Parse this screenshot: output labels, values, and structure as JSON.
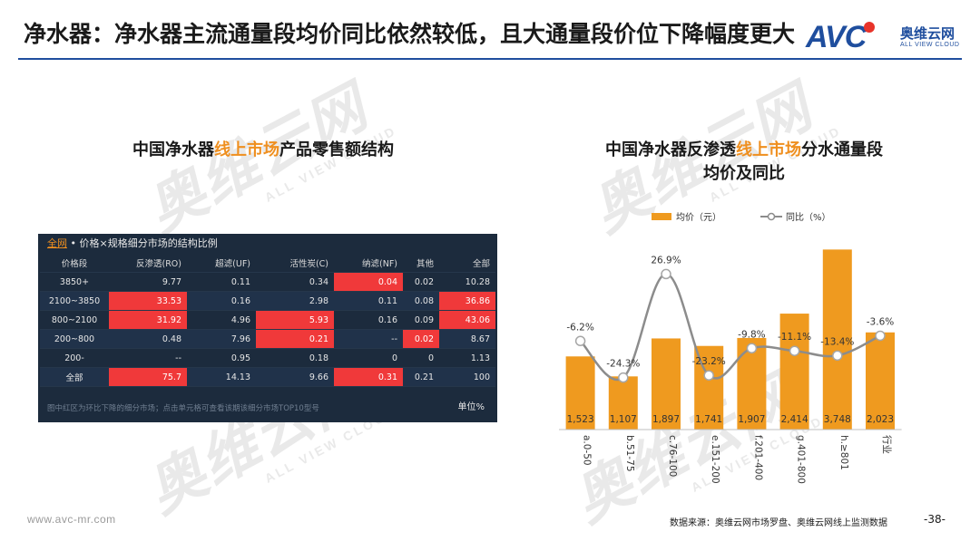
{
  "page": {
    "title": "净水器：净水器主流通量段均价同比依然较低，且大通量段价位下降幅度更大",
    "logo_mark": "AVC",
    "logo_cn": "奥维云网",
    "logo_en": "ALL VIEW CLOUD",
    "watermark_cn": "奥维云网",
    "watermark_en": "ALL VIEW CLOUD",
    "website": "www.avc-mr.com",
    "source": "数据来源：奥维云网市场罗盘、奥维云网线上监测数据",
    "page_number": "-38-"
  },
  "left_section": {
    "title_pre": "中国净水器",
    "title_hl": "线上市场",
    "title_post": "产品零售额结构"
  },
  "right_section": {
    "title_line1_pre": "中国净水器反渗透",
    "title_line1_hl": "线上市场",
    "title_line1_post": "分水通量段",
    "title_line2": "均价及同比"
  },
  "table": {
    "region": "全网",
    "caption": " • 价格×规格细分市场的结构比例",
    "headers": [
      "价格段",
      "反渗透(RO)",
      "超滤(UF)",
      "活性炭(C)",
      "纳滤(NF)",
      "其他",
      "全部"
    ],
    "rows": [
      {
        "cells": [
          "3850+",
          "9.77",
          "0.11",
          "0.34",
          "0.04",
          "0.02",
          "10.28"
        ],
        "red": [
          4
        ]
      },
      {
        "cells": [
          "2100~3850",
          "33.53",
          "0.16",
          "2.98",
          "0.11",
          "0.08",
          "36.86"
        ],
        "red": [
          1,
          6
        ]
      },
      {
        "cells": [
          "800~2100",
          "31.92",
          "4.96",
          "5.93",
          "0.16",
          "0.09",
          "43.06"
        ],
        "red": [
          1,
          3,
          6
        ]
      },
      {
        "cells": [
          "200~800",
          "0.48",
          "7.96",
          "0.21",
          "--",
          "0.02",
          "8.67"
        ],
        "red": [
          3,
          5
        ]
      },
      {
        "cells": [
          "200-",
          "--",
          "0.95",
          "0.18",
          "0",
          "0",
          "1.13"
        ],
        "red": []
      },
      {
        "cells": [
          "全部",
          "75.7",
          "14.13",
          "9.66",
          "0.31",
          "0.21",
          "100"
        ],
        "red": [
          1,
          4
        ]
      }
    ],
    "footnote": "图中红区为环比下降的细分市场；点击单元格可查看该期该细分市场TOP10型号",
    "unit": "单位%"
  },
  "colors": {
    "bar": "#ef9a1f",
    "line": "#8c8c8c",
    "accent": "#ef8f1f",
    "table_bg": "#1c2b3d",
    "table_red": "#f0393a",
    "title_rule": "#1f4e9e"
  },
  "chart_data": {
    "type": "bar",
    "categories": [
      "a.0-50",
      "b.51-75",
      "c.76-100",
      "e.151-200",
      "f.201-400",
      "g.401-800",
      "h.≥801",
      "行业"
    ],
    "series": [
      {
        "name": "均价（元）",
        "type": "bar",
        "values": [
          1523,
          1107,
          1897,
          1741,
          1907,
          2414,
          3748,
          2023
        ],
        "labels": [
          "1,523",
          "1,107",
          "1,897",
          "1,741",
          "1,907",
          "2,414",
          "3,748",
          "2,023"
        ]
      },
      {
        "name": "同比（%）",
        "type": "line",
        "values": [
          -6.2,
          -24.3,
          26.9,
          -23.2,
          -9.8,
          -11.1,
          -13.4,
          -3.6
        ],
        "labels": [
          "-6.2%",
          "-24.3%",
          "26.9%",
          "-23.2%",
          "-9.8%",
          "-11.1%",
          "-13.4%",
          "-3.6%"
        ]
      }
    ],
    "ylim": [
      0,
      4000
    ],
    "y2lim": [
      -50,
      45
    ],
    "legend": "top",
    "grid": false
  }
}
